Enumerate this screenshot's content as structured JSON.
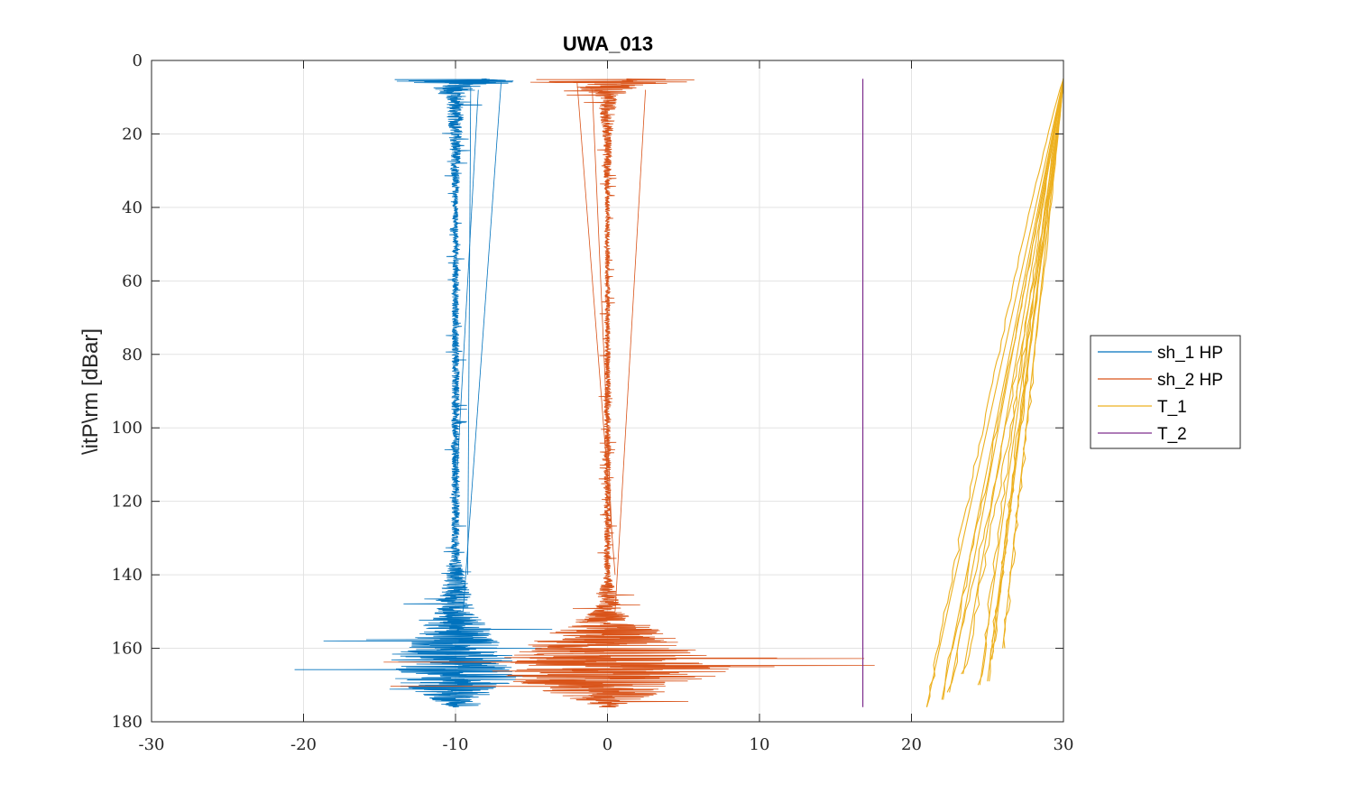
{
  "chart_data": {
    "type": "line",
    "title": "UWA_013",
    "xlabel": "",
    "ylabel": "\\itP\\rm [dBar]",
    "xlim": [
      -30,
      30
    ],
    "ylim": [
      0,
      180
    ],
    "y_reversed": true,
    "grid": true,
    "xticks": [
      "-30",
      "-20",
      "-10",
      "0",
      "10",
      "20",
      "30"
    ],
    "yticks": [
      "0",
      "20",
      "40",
      "60",
      "80",
      "100",
      "120",
      "140",
      "160",
      "180"
    ],
    "legend_position": "outside-right",
    "series": [
      {
        "name": "sh_1 HP",
        "color": "#0072BD",
        "center": -10,
        "range_P": [
          5,
          176
        ],
        "profile": [
          {
            "P": 5,
            "amp": 12
          },
          {
            "P": 7,
            "amp": 3
          },
          {
            "P": 10,
            "amp": 1.2
          },
          {
            "P": 20,
            "amp": 0.8
          },
          {
            "P": 40,
            "amp": 0.3
          },
          {
            "P": 60,
            "amp": 0.4
          },
          {
            "P": 100,
            "amp": 0.5
          },
          {
            "P": 135,
            "amp": 0.5
          },
          {
            "P": 150,
            "amp": 2.5
          },
          {
            "P": 162,
            "amp": 7
          },
          {
            "P": 169,
            "amp": 7.5
          },
          {
            "P": 176,
            "amp": 1
          }
        ]
      },
      {
        "name": "sh_2 HP",
        "color": "#D95319",
        "center": 0,
        "range_P": [
          5,
          176
        ],
        "profile": [
          {
            "P": 5,
            "amp": 15
          },
          {
            "P": 7,
            "amp": 4
          },
          {
            "P": 10,
            "amp": 1.2
          },
          {
            "P": 20,
            "amp": 0.6
          },
          {
            "P": 40,
            "amp": 0.3
          },
          {
            "P": 60,
            "amp": 0.3
          },
          {
            "P": 100,
            "amp": 0.4
          },
          {
            "P": 140,
            "amp": 0.4
          },
          {
            "P": 150,
            "amp": 1.8
          },
          {
            "P": 166,
            "amp": 16
          },
          {
            "P": 172,
            "amp": 7
          },
          {
            "P": 176,
            "amp": 1
          }
        ]
      },
      {
        "name": "T_1",
        "color": "#EDB120",
        "description": "repeated temperature profiles sweeping from about 30 at 5 dBar to 21-25 at 160-176 dBar",
        "endpoints": [
          {
            "P": 176,
            "x": 21.0
          },
          {
            "P": 174,
            "x": 22.0
          },
          {
            "P": 172,
            "x": 22.5
          },
          {
            "P": 170,
            "x": 24.5
          },
          {
            "P": 169,
            "x": 25.0
          },
          {
            "P": 167,
            "x": 23.4
          },
          {
            "P": 163,
            "x": 25.3
          },
          {
            "P": 160,
            "x": 26.0
          }
        ]
      },
      {
        "name": "T_2",
        "color": "#7E2F8E",
        "x_value": 16.8,
        "range_P": [
          5,
          176
        ]
      }
    ]
  }
}
